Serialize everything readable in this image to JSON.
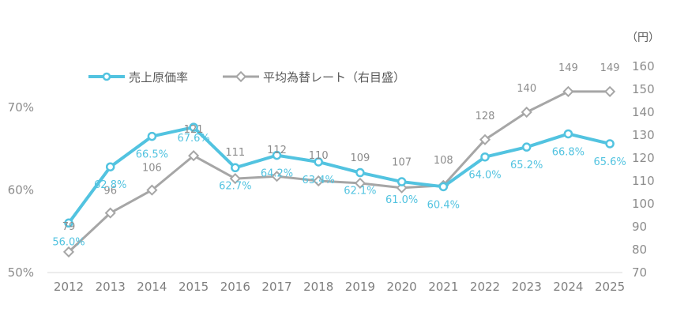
{
  "chart_data": {
    "type": "line",
    "categories": [
      "2012",
      "2013",
      "2014",
      "2015",
      "2016",
      "2017",
      "2018",
      "2019",
      "2020",
      "2021",
      "2022",
      "2023",
      "2024",
      "2025"
    ],
    "series": [
      {
        "name": "売上原価率",
        "axis": "left",
        "color": "#52c3e0",
        "marker": "circle",
        "values": [
          56.0,
          62.8,
          66.5,
          67.6,
          62.7,
          64.2,
          63.4,
          62.1,
          61.0,
          60.4,
          64.0,
          65.2,
          66.8,
          65.6
        ],
        "labels": [
          "56.0%",
          "62.8%",
          "66.5%",
          "67.6%",
          "62.7%",
          "64.2%",
          "63.4%",
          "62.1%",
          "61.0%",
          "60.4%",
          "64.0%",
          "65.2%",
          "66.8%",
          "65.6%"
        ]
      },
      {
        "name": "平均為替レート（右目盛）",
        "axis": "right",
        "color": "#a6a6a6",
        "marker": "diamond",
        "values": [
          79,
          96,
          106,
          121,
          111,
          112,
          110,
          109,
          107,
          108,
          128,
          140,
          149,
          149
        ],
        "labels": [
          "79",
          "96",
          "106",
          "121",
          "111",
          "112",
          "110",
          "109",
          "107",
          "108",
          "128",
          "140",
          "149",
          "149"
        ]
      }
    ],
    "y_left": {
      "min": 50,
      "max": 70,
      "ticks": [
        "50%",
        "60%",
        "70%"
      ]
    },
    "y_right": {
      "min": 70,
      "max": 160,
      "ticks": [
        "70",
        "80",
        "90",
        "100",
        "110",
        "120",
        "130",
        "140",
        "150",
        "160"
      ],
      "unit": "（円）"
    },
    "legend_position": "top-left",
    "grid": false
  }
}
